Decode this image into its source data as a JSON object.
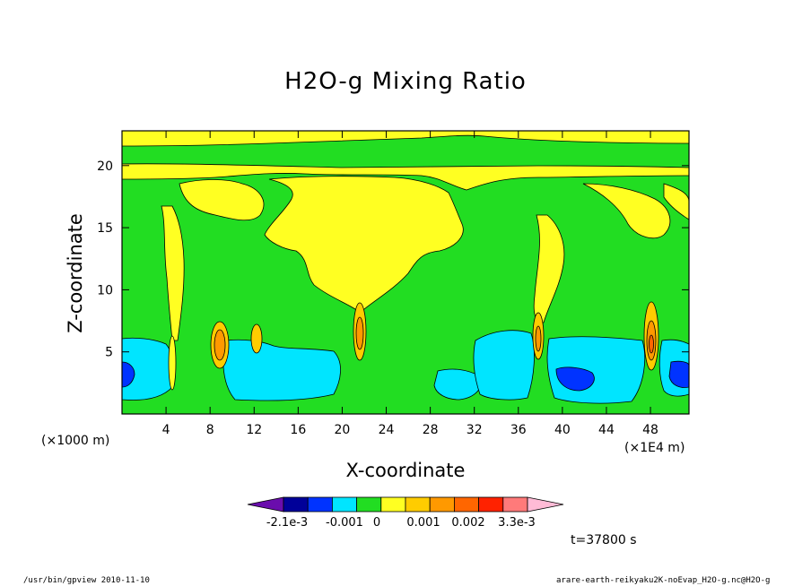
{
  "chart_data": {
    "type": "heatmap",
    "title": "H2O-g Mixing Ratio",
    "xlabel": "X-coordinate",
    "ylabel": "Z-coordinate",
    "x_unit": "(×1000 m)",
    "x_multiplier": "(×1E4 m)",
    "xlim": [
      0,
      51.5
    ],
    "ylim": [
      0,
      22.8
    ],
    "x_ticks": [
      4,
      8,
      12,
      16,
      20,
      24,
      28,
      32,
      36,
      40,
      44,
      48
    ],
    "y_ticks": [
      5,
      10,
      15,
      20
    ],
    "colorbar": {
      "levels": [
        "-2.1e-3",
        "-0.001",
        "0",
        "0.001",
        "0.002",
        "3.3e-3"
      ],
      "colors": [
        "#6a0dad",
        "#000099",
        "#0033ff",
        "#00e5ff",
        "#22dd22",
        "#ffff22",
        "#ffcc00",
        "#ff9900",
        "#ff6600",
        "#ff2200",
        "#ff7a7a",
        "#ffbbd6"
      ]
    },
    "dominant_field": "green (~0)",
    "features": [
      {
        "name": "upper yellow band",
        "z_range": [
          19,
          22.5
        ]
      },
      {
        "name": "central anvil plume",
        "x_range": [
          15,
          28
        ],
        "z_range": [
          8.5,
          17
        ]
      },
      {
        "name": "low-level cyan layer",
        "z_range": [
          1,
          6
        ]
      },
      {
        "name": "convective cores",
        "x": [
          4.5,
          9,
          12,
          21.5,
          38,
          47.5
        ]
      }
    ]
  },
  "time_label": "t=37800 s",
  "footer": {
    "left": "/usr/bin/gpview  2010-11-10",
    "right": "arare-earth-reikyaku2K-noEvap_H2O-g.nc@H2O-g"
  }
}
